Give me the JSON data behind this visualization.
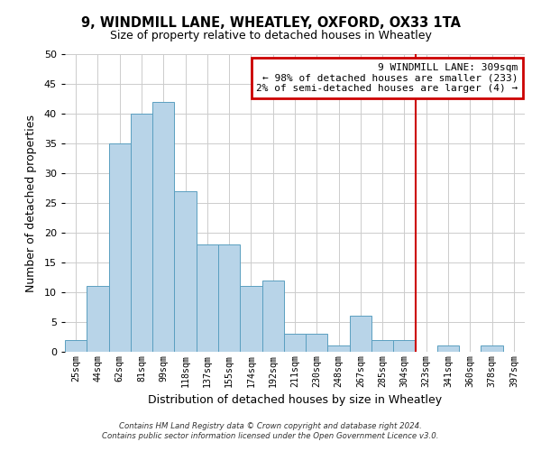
{
  "title": "9, WINDMILL LANE, WHEATLEY, OXFORD, OX33 1TA",
  "subtitle": "Size of property relative to detached houses in Wheatley",
  "xlabel": "Distribution of detached houses by size in Wheatley",
  "ylabel": "Number of detached properties",
  "bar_labels": [
    "25sqm",
    "44sqm",
    "62sqm",
    "81sqm",
    "99sqm",
    "118sqm",
    "137sqm",
    "155sqm",
    "174sqm",
    "192sqm",
    "211sqm",
    "230sqm",
    "248sqm",
    "267sqm",
    "285sqm",
    "304sqm",
    "323sqm",
    "341sqm",
    "360sqm",
    "378sqm",
    "397sqm"
  ],
  "bar_values": [
    2,
    11,
    35,
    40,
    42,
    27,
    18,
    18,
    11,
    12,
    3,
    3,
    1,
    6,
    2,
    2,
    0,
    1,
    0,
    1,
    0
  ],
  "bar_color": "#b8d4e8",
  "bar_edge_color": "#5a9fc0",
  "ylim": [
    0,
    50
  ],
  "yticks": [
    0,
    5,
    10,
    15,
    20,
    25,
    30,
    35,
    40,
    45,
    50
  ],
  "vline_idx": 15.5,
  "vline_color": "#cc0000",
  "annotation_title": "9 WINDMILL LANE: 309sqm",
  "annotation_line1": "← 98% of detached houses are smaller (233)",
  "annotation_line2": "2% of semi-detached houses are larger (4) →",
  "annotation_box_color": "#ffffff",
  "annotation_box_edge": "#cc0000",
  "footer1": "Contains HM Land Registry data © Crown copyright and database right 2024.",
  "footer2": "Contains public sector information licensed under the Open Government Licence v3.0.",
  "background_color": "#ffffff",
  "grid_color": "#cccccc"
}
